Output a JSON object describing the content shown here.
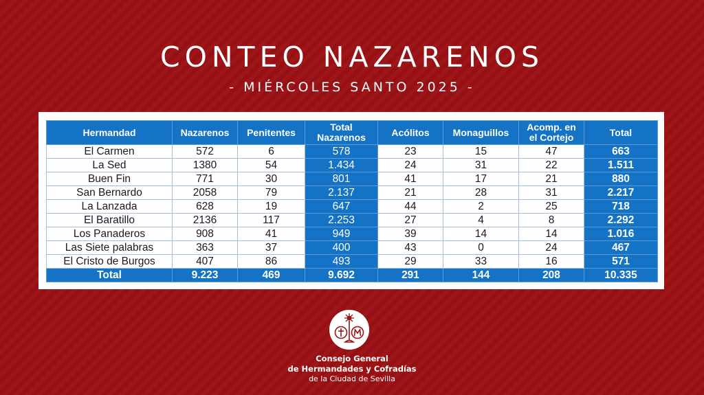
{
  "header": {
    "title": "CONTEO NAZARENOS",
    "subtitle": "- MIÉRCOLES SANTO 2025 -"
  },
  "colors": {
    "background": "#9b1114",
    "table_header": "#1573c6",
    "card": "#ffffff"
  },
  "table": {
    "columns": [
      "Hermandad",
      "Nazarenos",
      "Penitentes",
      "Total Nazarenos",
      "Acólitos",
      "Monaguillos",
      "Acomp. en el Cortejo",
      "Total"
    ],
    "header_lines": {
      "total_nazarenos": [
        "Total",
        "Nazarenos"
      ],
      "acomp": [
        "Acomp. en",
        "el Cortejo"
      ]
    },
    "rows": [
      {
        "hermandad": "El Carmen",
        "nazarenos": "572",
        "penitentes": "6",
        "total_nazarenos": "578",
        "acolitos": "23",
        "monaguillos": "15",
        "acomp": "47",
        "total": "663"
      },
      {
        "hermandad": "La Sed",
        "nazarenos": "1380",
        "penitentes": "54",
        "total_nazarenos": "1.434",
        "acolitos": "24",
        "monaguillos": "31",
        "acomp": "22",
        "total": "1.511"
      },
      {
        "hermandad": "Buen Fin",
        "nazarenos": "771",
        "penitentes": "30",
        "total_nazarenos": "801",
        "acolitos": "41",
        "monaguillos": "17",
        "acomp": "21",
        "total": "880"
      },
      {
        "hermandad": "San Bernardo",
        "nazarenos": "2058",
        "penitentes": "79",
        "total_nazarenos": "2.137",
        "acolitos": "21",
        "monaguillos": "28",
        "acomp": "31",
        "total": "2.217"
      },
      {
        "hermandad": "La Lanzada",
        "nazarenos": "628",
        "penitentes": "19",
        "total_nazarenos": "647",
        "acolitos": "44",
        "monaguillos": "2",
        "acomp": "25",
        "total": "718"
      },
      {
        "hermandad": "El Baratillo",
        "nazarenos": "2136",
        "penitentes": "117",
        "total_nazarenos": "2.253",
        "acolitos": "27",
        "monaguillos": "4",
        "acomp": "8",
        "total": "2.292"
      },
      {
        "hermandad": "Los Panaderos",
        "nazarenos": "908",
        "penitentes": "41",
        "total_nazarenos": "949",
        "acolitos": "39",
        "monaguillos": "14",
        "acomp": "14",
        "total": "1.016"
      },
      {
        "hermandad": "Las Siete palabras",
        "nazarenos": "363",
        "penitentes": "37",
        "total_nazarenos": "400",
        "acolitos": "43",
        "monaguillos": "0",
        "acomp": "24",
        "total": "467"
      },
      {
        "hermandad": "El Cristo de Burgos",
        "nazarenos": "407",
        "penitentes": "86",
        "total_nazarenos": "493",
        "acolitos": "29",
        "monaguillos": "33",
        "acomp": "16",
        "total": "571"
      }
    ],
    "totals": {
      "hermandad": "Total",
      "nazarenos": "9.223",
      "penitentes": "469",
      "total_nazarenos": "9.692",
      "acolitos": "291",
      "monaguillos": "144",
      "acomp": "208",
      "total": "10.335"
    }
  },
  "footer": {
    "logo_icon": "consejo-emblem-icon",
    "line1": "Consejo General",
    "line2": "de Hermandades y Cofradías",
    "line3": "de la Ciudad de Sevilla"
  }
}
